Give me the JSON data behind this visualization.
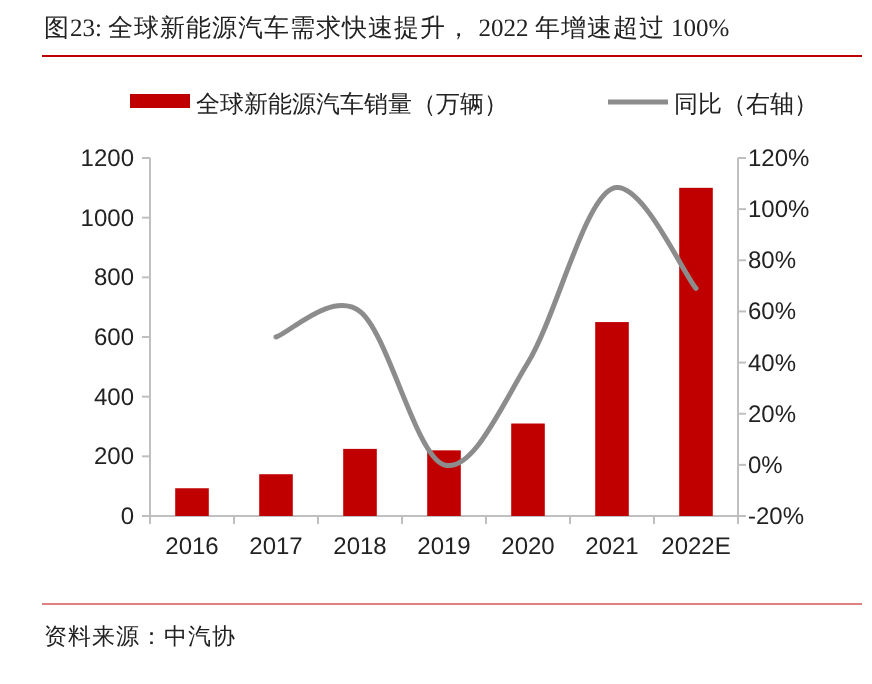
{
  "chart_data": {
    "type": "bar",
    "title": "图23:  全球新能源汽车需求快速提升， 2022 年增速超过 100%",
    "categories": [
      "2016",
      "2017",
      "2018",
      "2019",
      "2020",
      "2021",
      "2022E"
    ],
    "series": [
      {
        "name": "全球新能源汽车销量（万辆）",
        "color": "#c00000",
        "values": [
          93,
          140,
          225,
          220,
          310,
          650,
          1100
        ]
      },
      {
        "name": "同比（右轴）",
        "type": "line",
        "axis": "y2",
        "color": "#8c8c8c",
        "values": [
          null,
          50,
          60,
          0,
          40,
          108,
          69
        ]
      }
    ],
    "ylim": [
      0,
      1200
    ],
    "yticks": [
      0,
      200,
      400,
      600,
      800,
      1000,
      1200
    ],
    "y2lim": [
      -20,
      120
    ],
    "y2ticks": [
      {
        "value": -20,
        "label": "-20%"
      },
      {
        "value": 0,
        "label": "0%"
      },
      {
        "value": 20,
        "label": "20%"
      },
      {
        "value": 40,
        "label": "40%"
      },
      {
        "value": 60,
        "label": "60%"
      },
      {
        "value": 80,
        "label": "80%"
      },
      {
        "value": 100,
        "label": "100%"
      },
      {
        "value": 120,
        "label": "120%"
      }
    ],
    "legend": "top",
    "grid": false,
    "annotations": [
      "资料来源：中汽协"
    ]
  }
}
